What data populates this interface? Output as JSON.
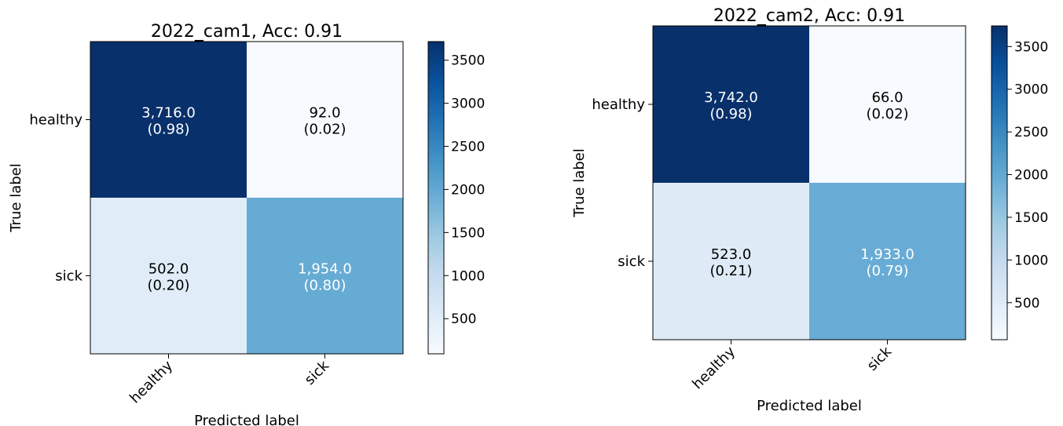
{
  "chart_data": [
    {
      "type": "heatmap",
      "title": "2022_cam1, Acc: 0.91",
      "xlabel": "Predicted label",
      "ylabel": "True label",
      "x_categories": [
        "healthy",
        "sick"
      ],
      "y_categories": [
        "healthy",
        "sick"
      ],
      "values": [
        [
          3716.0,
          92.0
        ],
        [
          502.0,
          1954.0
        ]
      ],
      "value_labels": [
        [
          "3,716.0",
          "92.0"
        ],
        [
          "502.0",
          "1,954.0"
        ]
      ],
      "ratio_labels": [
        [
          "(0.98)",
          "(0.02)"
        ],
        [
          "(0.20)",
          "(0.80)"
        ]
      ],
      "colorbar": {
        "range": [
          92,
          3716
        ],
        "ticks": [
          500,
          1000,
          1500,
          2000,
          2500,
          3000,
          3500
        ],
        "colormap": "Blues"
      }
    },
    {
      "type": "heatmap",
      "title": "2022_cam2, Acc: 0.91",
      "xlabel": "Predicted label",
      "ylabel": "True label",
      "x_categories": [
        "healthy",
        "sick"
      ],
      "y_categories": [
        "healthy",
        "sick"
      ],
      "values": [
        [
          3742.0,
          66.0
        ],
        [
          523.0,
          1933.0
        ]
      ],
      "value_labels": [
        [
          "3,742.0",
          "66.0"
        ],
        [
          "523.0",
          "1,933.0"
        ]
      ],
      "ratio_labels": [
        [
          "(0.98)",
          "(0.02)"
        ],
        [
          "(0.21)",
          "(0.79)"
        ]
      ],
      "colorbar": {
        "range": [
          66,
          3742
        ],
        "ticks": [
          500,
          1000,
          1500,
          2000,
          2500,
          3000,
          3500
        ],
        "colormap": "Blues"
      }
    }
  ]
}
